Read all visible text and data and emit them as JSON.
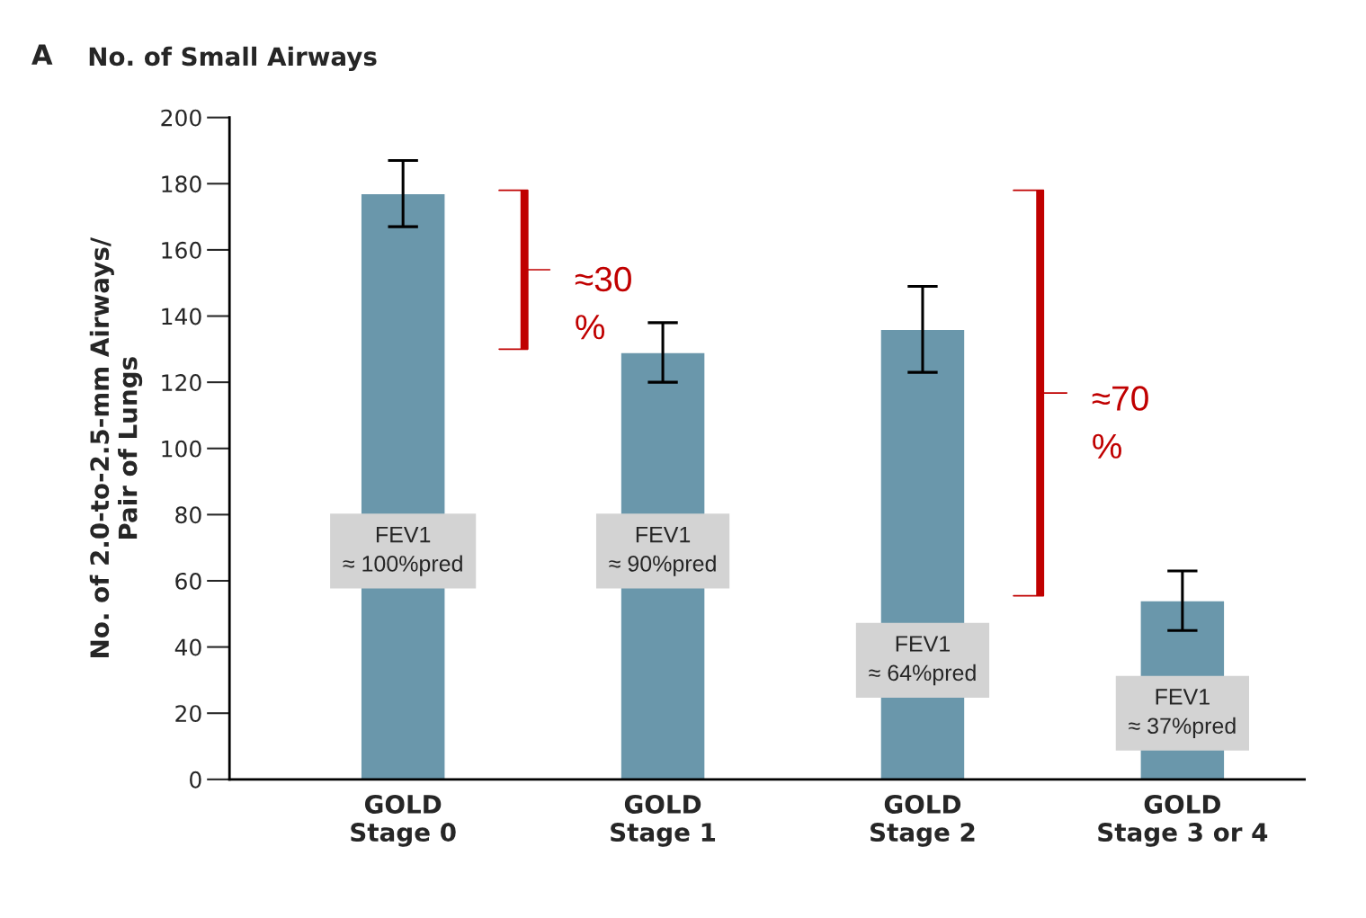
{
  "chart_data": {
    "type": "bar",
    "title": "No. of Small Airways",
    "ylabel": "No. of 2.0-to-2.5-mm Airways/\nPair of Lungs",
    "categories": [
      "GOLD\nStage 0",
      "GOLD\nStage 1",
      "GOLD\nStage 2",
      "GOLD\nStage 3 or 4"
    ],
    "values": [
      177,
      129,
      136,
      54
    ],
    "errors": [
      10,
      9,
      13,
      9
    ],
    "color": "#6a97ab",
    "ylim": [
      0,
      200
    ],
    "yticks": [
      0,
      20,
      40,
      60,
      80,
      100,
      120,
      140,
      160,
      180,
      200
    ],
    "grid": false,
    "annotations": [
      "A",
      "FEV1\n≈ 100%pred",
      "FEV1\n≈ 90%pred",
      "FEV1\n≈ 64%pred",
      "FEV1\n≈ 37%pred",
      "≈30\n%",
      "≈70\n%"
    ]
  }
}
